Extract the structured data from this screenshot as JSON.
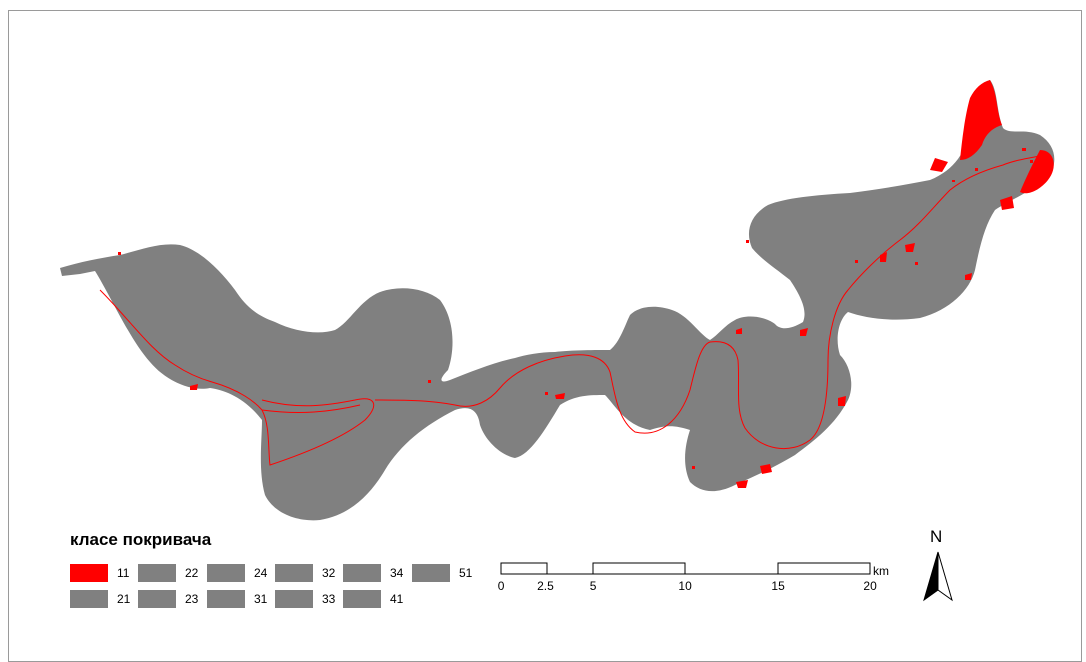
{
  "legend": {
    "title": "класе покривача",
    "items": [
      {
        "label": "11",
        "color": "#ff0000"
      },
      {
        "label": "22",
        "color": "#808080"
      },
      {
        "label": "24",
        "color": "#808080"
      },
      {
        "label": "32",
        "color": "#808080"
      },
      {
        "label": "34",
        "color": "#808080"
      },
      {
        "label": "51",
        "color": "#808080"
      },
      {
        "label": "21",
        "color": "#808080"
      },
      {
        "label": "23",
        "color": "#808080"
      },
      {
        "label": "31",
        "color": "#808080"
      },
      {
        "label": "33",
        "color": "#808080"
      },
      {
        "label": "41",
        "color": "#808080"
      }
    ]
  },
  "scale": {
    "ticks": [
      "0",
      "2.5",
      "5",
      "10",
      "15",
      "20"
    ],
    "unit": "km"
  },
  "north_arrow": {
    "label": "N"
  },
  "colors": {
    "land": "#808080",
    "class_11": "#ff0000",
    "border": "#9a9a9a"
  }
}
